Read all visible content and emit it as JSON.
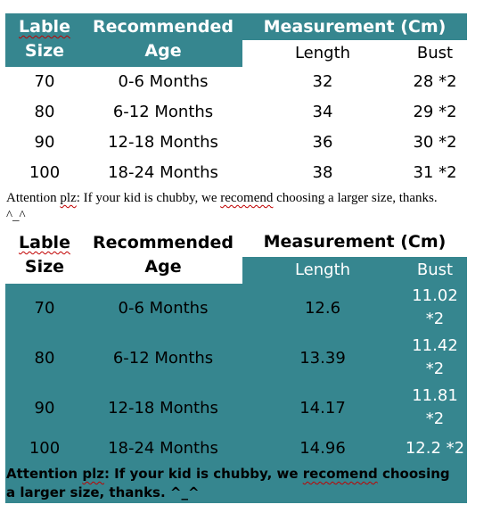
{
  "colors": {
    "teal": "#36868f",
    "white": "#ffffff",
    "spell_underline": "#c00000"
  },
  "table1": {
    "header": {
      "lable_word": "Lable",
      "size_word": "Size",
      "recommended_word": "Recommended",
      "age_word": "Age",
      "measurement": "Measurement (Cm)",
      "length": "Length",
      "bust": "Bust"
    },
    "rows": [
      {
        "size": "70",
        "age": "0-6 Months",
        "length": "32",
        "bust": "28 *2"
      },
      {
        "size": "80",
        "age": "6-12 Months",
        "length": "34",
        "bust": "29 *2"
      },
      {
        "size": "90",
        "age": "12-18 Months",
        "length": "36",
        "bust": "30 *2"
      },
      {
        "size": "100",
        "age": "18-24 Months",
        "length": "38",
        "bust": "31 *2"
      }
    ],
    "note": {
      "prefix": "Attention ",
      "plz": "plz",
      "middle": ": If your kid is chubby, we ",
      "recomend": "recomend",
      "suffix": " choosing a larger size, thanks. ^_^"
    }
  },
  "table2": {
    "header": {
      "lable_word": "Lable",
      "size_word": "Size",
      "recommended_word": "Recommended",
      "age_word": "Age",
      "measurement": "Measurement (Cm)",
      "length": "Length",
      "bust": "Bust"
    },
    "rows": [
      {
        "size": "70",
        "age": "0-6 Months",
        "length": "12.6",
        "bust_line1": "11.02",
        "bust_line2": "*2"
      },
      {
        "size": "80",
        "age": "6-12 Months",
        "length": "13.39",
        "bust_line1": "11.42",
        "bust_line2": "*2"
      },
      {
        "size": "90",
        "age": "12-18 Months",
        "length": "14.17",
        "bust_line1": "11.81",
        "bust_line2": "*2"
      },
      {
        "size": "100",
        "age": "18-24 Months",
        "length": "14.96",
        "bust_line1": "12.2 *2",
        "bust_line2": ""
      }
    ],
    "note": {
      "prefix": "Attention ",
      "plz": "plz",
      "middle": ": If your kid is chubby, we ",
      "recomend": "recomend",
      "suffix": " choosing a larger size, thanks. ^_^"
    }
  }
}
